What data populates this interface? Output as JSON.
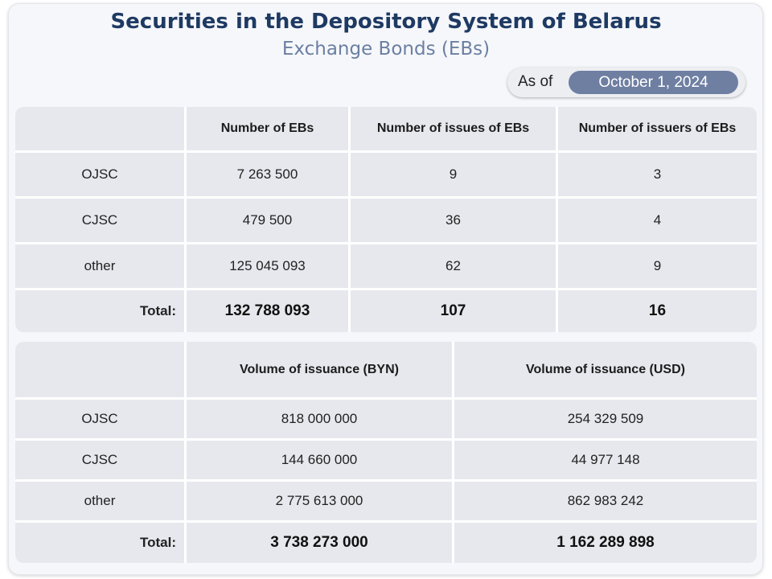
{
  "title": "Securities in the Depository System of Belarus",
  "subtitle": "Exchange Bonds (EBs)",
  "as_of": {
    "label": "As of",
    "date": "October 1, 2024"
  },
  "table1": {
    "headers": [
      "",
      "Number of EBs",
      "Number of issues of EBs",
      "Number of issuers of EBs"
    ],
    "rows": [
      [
        "OJSC",
        "7 263 500",
        "9",
        "3"
      ],
      [
        "CJSC",
        "479 500",
        "36",
        "4"
      ],
      [
        "other",
        "125 045 093",
        "62",
        "9"
      ]
    ],
    "total": [
      "Total:",
      "132 788 093",
      "107",
      "16"
    ]
  },
  "table2": {
    "headers": [
      "",
      "Volume of issuance (BYN)",
      "Volume of issuance (USD)"
    ],
    "rows": [
      [
        "OJSC",
        "818 000 000",
        "254 329 509"
      ],
      [
        "CJSC",
        "144 660 000",
        "44 977 148"
      ],
      [
        "other",
        "2 775 613 000",
        "862 983 242"
      ]
    ],
    "total": [
      "Total:",
      "3 738 273 000",
      "1 162 289 898"
    ]
  },
  "colors": {
    "title": "#1e3a63",
    "subtitle": "#6b7fa3",
    "accent": "#6f7fa2",
    "cell_bg": "#e7e8ed"
  }
}
